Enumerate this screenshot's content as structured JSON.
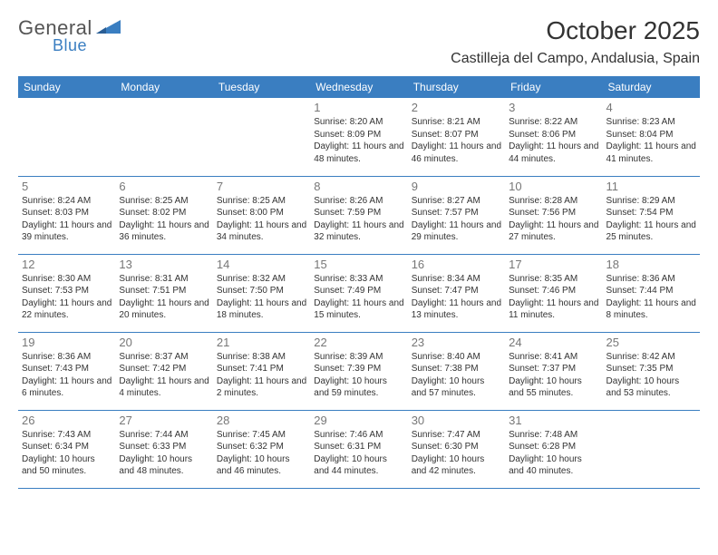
{
  "logo": {
    "textA": "General",
    "textB": "Blue"
  },
  "header": {
    "month_title": "October 2025",
    "location": "Castilleja del Campo, Andalusia, Spain"
  },
  "day_headers": [
    "Sunday",
    "Monday",
    "Tuesday",
    "Wednesday",
    "Thursday",
    "Friday",
    "Saturday"
  ],
  "colors": {
    "header_bg": "#3a7ec1",
    "header_text": "#ffffff",
    "text": "#333333",
    "daynum": "#777777",
    "rule": "#3a7ec1",
    "bg": "#ffffff"
  },
  "fonts": {
    "title_pt": 28,
    "location_pt": 16,
    "header_pt": 12,
    "daynum_pt": 13,
    "info_pt": 10
  },
  "layout": {
    "columns": 7,
    "rows": 5,
    "first_weekday_index": 3
  },
  "days": [
    {
      "n": "1",
      "sunrise": "8:20 AM",
      "sunset": "8:09 PM",
      "daylight": "11 hours and 48 minutes."
    },
    {
      "n": "2",
      "sunrise": "8:21 AM",
      "sunset": "8:07 PM",
      "daylight": "11 hours and 46 minutes."
    },
    {
      "n": "3",
      "sunrise": "8:22 AM",
      "sunset": "8:06 PM",
      "daylight": "11 hours and 44 minutes."
    },
    {
      "n": "4",
      "sunrise": "8:23 AM",
      "sunset": "8:04 PM",
      "daylight": "11 hours and 41 minutes."
    },
    {
      "n": "5",
      "sunrise": "8:24 AM",
      "sunset": "8:03 PM",
      "daylight": "11 hours and 39 minutes."
    },
    {
      "n": "6",
      "sunrise": "8:25 AM",
      "sunset": "8:02 PM",
      "daylight": "11 hours and 36 minutes."
    },
    {
      "n": "7",
      "sunrise": "8:25 AM",
      "sunset": "8:00 PM",
      "daylight": "11 hours and 34 minutes."
    },
    {
      "n": "8",
      "sunrise": "8:26 AM",
      "sunset": "7:59 PM",
      "daylight": "11 hours and 32 minutes."
    },
    {
      "n": "9",
      "sunrise": "8:27 AM",
      "sunset": "7:57 PM",
      "daylight": "11 hours and 29 minutes."
    },
    {
      "n": "10",
      "sunrise": "8:28 AM",
      "sunset": "7:56 PM",
      "daylight": "11 hours and 27 minutes."
    },
    {
      "n": "11",
      "sunrise": "8:29 AM",
      "sunset": "7:54 PM",
      "daylight": "11 hours and 25 minutes."
    },
    {
      "n": "12",
      "sunrise": "8:30 AM",
      "sunset": "7:53 PM",
      "daylight": "11 hours and 22 minutes."
    },
    {
      "n": "13",
      "sunrise": "8:31 AM",
      "sunset": "7:51 PM",
      "daylight": "11 hours and 20 minutes."
    },
    {
      "n": "14",
      "sunrise": "8:32 AM",
      "sunset": "7:50 PM",
      "daylight": "11 hours and 18 minutes."
    },
    {
      "n": "15",
      "sunrise": "8:33 AM",
      "sunset": "7:49 PM",
      "daylight": "11 hours and 15 minutes."
    },
    {
      "n": "16",
      "sunrise": "8:34 AM",
      "sunset": "7:47 PM",
      "daylight": "11 hours and 13 minutes."
    },
    {
      "n": "17",
      "sunrise": "8:35 AM",
      "sunset": "7:46 PM",
      "daylight": "11 hours and 11 minutes."
    },
    {
      "n": "18",
      "sunrise": "8:36 AM",
      "sunset": "7:44 PM",
      "daylight": "11 hours and 8 minutes."
    },
    {
      "n": "19",
      "sunrise": "8:36 AM",
      "sunset": "7:43 PM",
      "daylight": "11 hours and 6 minutes."
    },
    {
      "n": "20",
      "sunrise": "8:37 AM",
      "sunset": "7:42 PM",
      "daylight": "11 hours and 4 minutes."
    },
    {
      "n": "21",
      "sunrise": "8:38 AM",
      "sunset": "7:41 PM",
      "daylight": "11 hours and 2 minutes."
    },
    {
      "n": "22",
      "sunrise": "8:39 AM",
      "sunset": "7:39 PM",
      "daylight": "10 hours and 59 minutes."
    },
    {
      "n": "23",
      "sunrise": "8:40 AM",
      "sunset": "7:38 PM",
      "daylight": "10 hours and 57 minutes."
    },
    {
      "n": "24",
      "sunrise": "8:41 AM",
      "sunset": "7:37 PM",
      "daylight": "10 hours and 55 minutes."
    },
    {
      "n": "25",
      "sunrise": "8:42 AM",
      "sunset": "7:35 PM",
      "daylight": "10 hours and 53 minutes."
    },
    {
      "n": "26",
      "sunrise": "7:43 AM",
      "sunset": "6:34 PM",
      "daylight": "10 hours and 50 minutes."
    },
    {
      "n": "27",
      "sunrise": "7:44 AM",
      "sunset": "6:33 PM",
      "daylight": "10 hours and 48 minutes."
    },
    {
      "n": "28",
      "sunrise": "7:45 AM",
      "sunset": "6:32 PM",
      "daylight": "10 hours and 46 minutes."
    },
    {
      "n": "29",
      "sunrise": "7:46 AM",
      "sunset": "6:31 PM",
      "daylight": "10 hours and 44 minutes."
    },
    {
      "n": "30",
      "sunrise": "7:47 AM",
      "sunset": "6:30 PM",
      "daylight": "10 hours and 42 minutes."
    },
    {
      "n": "31",
      "sunrise": "7:48 AM",
      "sunset": "6:28 PM",
      "daylight": "10 hours and 40 minutes."
    }
  ]
}
